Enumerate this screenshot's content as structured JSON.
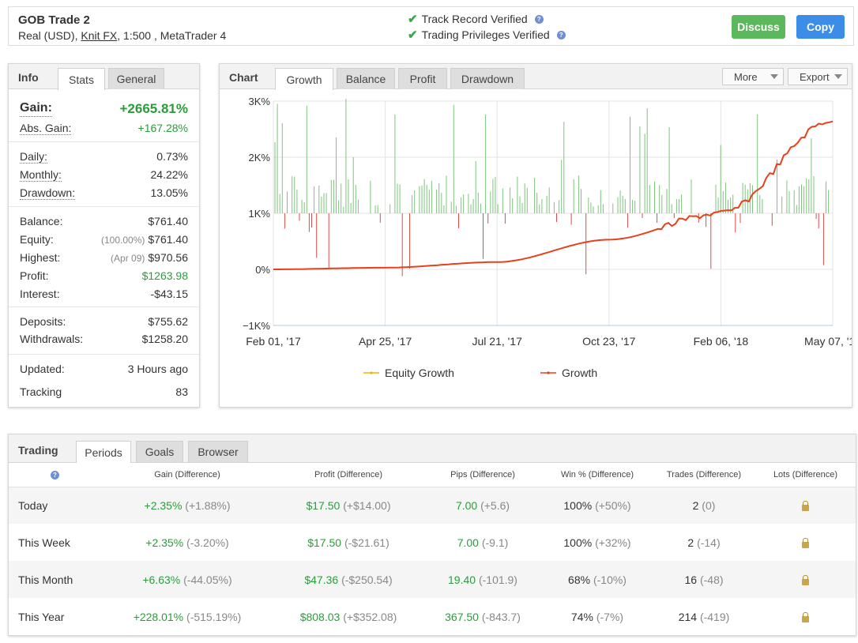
{
  "header": {
    "system_name": "GOB Trade 2",
    "meta_prefix": "Real (USD), ",
    "broker": "Knit FX",
    "meta_suffix": ", 1:500 , MetaTrader 4",
    "track_record": "Track Record Verified",
    "trading_privileges": "Trading Privileges Verified",
    "discuss_label": "Discuss",
    "copy_label": "Copy",
    "discuss_color": "#5cb85c",
    "copy_color": "#3b8de8"
  },
  "info": {
    "title": "Info",
    "tabs": [
      "Stats",
      "General"
    ],
    "gain_label": "Gain:",
    "gain_value": "+2665.81%",
    "abs_gain_label": "Abs. Gain:",
    "abs_gain_value": "+167.28%",
    "daily_label": "Daily:",
    "daily_value": "0.73%",
    "monthly_label": "Monthly:",
    "monthly_value": "24.22%",
    "drawdown_label": "Drawdown:",
    "drawdown_value": "13.05%",
    "balance_label": "Balance:",
    "balance_value": "$761.40",
    "equity_label": "Equity:",
    "equity_pct": "(100.00%)",
    "equity_value": "$761.40",
    "highest_label": "Highest:",
    "highest_date": "(Apr 09)",
    "highest_value": "$970.56",
    "profit_label": "Profit:",
    "profit_value": "$1263.98",
    "interest_label": "Interest:",
    "interest_value": "-$43.15",
    "deposits_label": "Deposits:",
    "deposits_value": "$755.62",
    "withdrawals_label": "Withdrawals:",
    "withdrawals_value": "$1258.20",
    "updated_label": "Updated:",
    "updated_value": "3 Hours ago",
    "tracking_label": "Tracking",
    "tracking_value": "83"
  },
  "chart_panel": {
    "title": "Chart",
    "tabs": [
      "Growth",
      "Balance",
      "Profit",
      "Drawdown"
    ],
    "more_label": "More",
    "export_label": "Export"
  },
  "chart_data": {
    "type": "line",
    "y_ticks": [
      "3K%",
      "2K%",
      "1K%",
      "0%",
      "−1K%"
    ],
    "ylim": [
      -1000,
      3000
    ],
    "x_ticks": [
      "Feb 01, '17",
      "Apr 25, '17",
      "Jul 21, '17",
      "Oct 23, '17",
      "Feb 06, '18",
      "May 07, '18"
    ],
    "series": [
      {
        "name": "Equity Growth",
        "color": "#f0b400"
      },
      {
        "name": "Growth",
        "color": "#e8401c",
        "x": [
          "Feb 01, '17",
          "Apr 25, '17",
          "Jul 21, '17",
          "Oct 23, '17",
          "Feb 06, '18",
          "May 07, '18"
        ],
        "values": [
          0,
          30,
          130,
          530,
          1000,
          2660
        ]
      }
    ],
    "bars_color_positive": "#7cc47c",
    "bars_color_negative": "#e04a4a",
    "grid": true,
    "legend": "bottom"
  },
  "trading": {
    "title": "Trading",
    "tabs": [
      "Periods",
      "Goals",
      "Browser"
    ],
    "help_icon": "?",
    "columns": [
      "Gain (Difference)",
      "Profit (Difference)",
      "Pips (Difference)",
      "Win % (Difference)",
      "Trades (Difference)",
      "Lots (Difference)"
    ],
    "rows": [
      {
        "period": "Today",
        "gain": "+2.35%",
        "gain_diff": "(+1.88%)",
        "profit": "$17.50",
        "profit_diff": "(+$14.00)",
        "pips": "7.00",
        "pips_diff": "(+5.6)",
        "win": "100%",
        "win_diff": "(+50%)",
        "trades": "2",
        "trades_diff": "(0)"
      },
      {
        "period": "This Week",
        "gain": "+2.35%",
        "gain_diff": "(-3.20%)",
        "profit": "$17.50",
        "profit_diff": "(-$21.61)",
        "pips": "7.00",
        "pips_diff": "(-9.1)",
        "win": "100%",
        "win_diff": "(+32%)",
        "trades": "2",
        "trades_diff": "(-14)"
      },
      {
        "period": "This Month",
        "gain": "+6.63%",
        "gain_diff": "(-44.05%)",
        "profit": "$47.36",
        "profit_diff": "(-$250.54)",
        "pips": "19.40",
        "pips_diff": "(-101.9)",
        "win": "68%",
        "win_diff": "(-10%)",
        "trades": "16",
        "trades_diff": "(-48)"
      },
      {
        "period": "This Year",
        "gain": "+228.01%",
        "gain_diff": "(-515.19%)",
        "profit": "$808.03",
        "profit_diff": "(+$352.08)",
        "pips": "367.50",
        "pips_diff": "(-843.7)",
        "win": "74%",
        "win_diff": "(-7%)",
        "trades": "214",
        "trades_diff": "(-419)"
      }
    ]
  }
}
